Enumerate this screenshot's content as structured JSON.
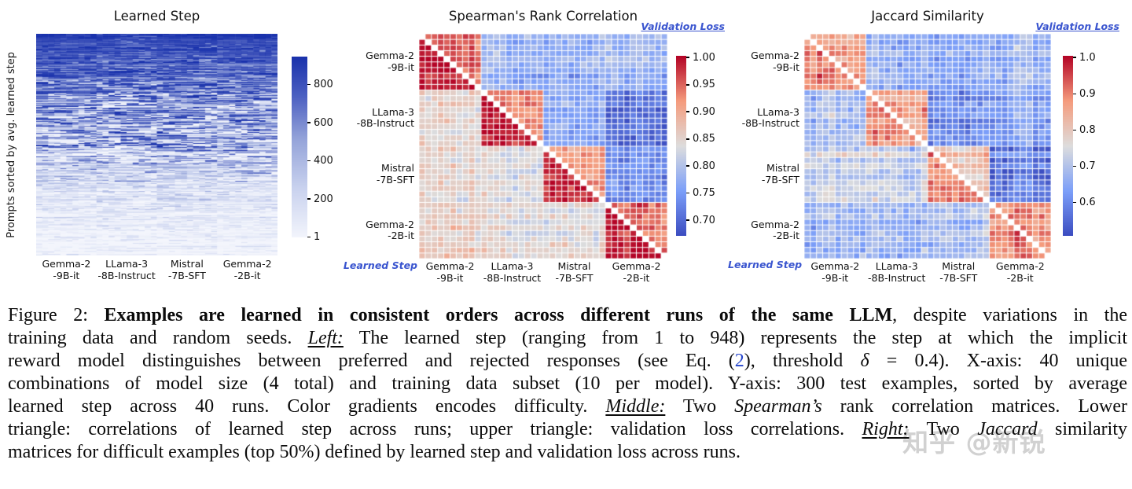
{
  "figure": {
    "panels": [
      {
        "title": "Learned Step",
        "ylabel": "Prompts sorted by avg. learned step",
        "xticklabels": [
          [
            "Gemma-2",
            "-9B-it"
          ],
          [
            "LLama-3",
            "-8B-Instruct"
          ],
          [
            "Mistral",
            "-7B-SFT"
          ],
          [
            "Gemma-2",
            "-2B-it"
          ]
        ],
        "colorbar_ticks": [
          "800",
          "600",
          "400",
          "200",
          "1"
        ]
      },
      {
        "title": "Spearman's Rank Correlation",
        "top_right_label": "Validation Loss",
        "bottom_left_label": "Learned Step",
        "yticklabels": [
          [
            "Gemma-2",
            "-9B-it"
          ],
          [
            "LLama-3",
            "-8B-Instruct"
          ],
          [
            "Mistral",
            "-7B-SFT"
          ],
          [
            "Gemma-2",
            "-2B-it"
          ]
        ],
        "xticklabels": [
          [
            "Gemma-2",
            "-9B-it"
          ],
          [
            "LLama-3",
            "-8B-Instruct"
          ],
          [
            "Mistral",
            "-7B-SFT"
          ],
          [
            "Gemma-2",
            "-2B-it"
          ]
        ],
        "colorbar_ticks": [
          "1.00",
          "0.95",
          "0.90",
          "0.85",
          "0.80",
          "0.75",
          "0.70"
        ]
      },
      {
        "title": "Jaccard Similarity",
        "top_right_label": "Validation Loss",
        "bottom_left_label": "Learned Step",
        "yticklabels": [
          [
            "Gemma-2",
            "-9B-it"
          ],
          [
            "LLama-3",
            "-8B-Instruct"
          ],
          [
            "Mistral",
            "-7B-SFT"
          ],
          [
            "Gemma-2",
            "-2B-it"
          ]
        ],
        "xticklabels": [
          [
            "Gemma-2",
            "-9B-it"
          ],
          [
            "LLama-3",
            "-8B-Instruct"
          ],
          [
            "Mistral",
            "-7B-SFT"
          ],
          [
            "Gemma-2",
            "-2B-it"
          ]
        ],
        "colorbar_ticks": [
          "1.0",
          "0.9",
          "0.8",
          "0.7",
          "0.6"
        ]
      }
    ],
    "accent_blue": "#3a55cf",
    "heatmap_dark_blue": "#1a32ac",
    "coolwarm_red": "#b40426",
    "coolwarm_blue": "#3b4cc0"
  },
  "chart_data": [
    {
      "type": "heatmap",
      "title": "Learned Step",
      "ylabel": "Prompts sorted by avg. learned step",
      "rows": 300,
      "cols": 40,
      "col_groups": [
        "Gemma-2-9B-it",
        "LLama-3-8B-Instruct",
        "Mistral-7B-SFT",
        "Gemma-2-2B-it"
      ],
      "runs_per_model": 10,
      "value_range": [
        1,
        948
      ],
      "row_order": "sorted by average learned step, high (dark blue) at top to low (near white) at bottom",
      "colormap": "white-to-royal-blue",
      "colorbar": {
        "min": 1,
        "max": 948,
        "ticks": [
          800,
          600,
          400,
          200,
          1
        ]
      }
    },
    {
      "type": "heatmap",
      "title": "Spearman's Rank Correlation",
      "matrix_size": 40,
      "group_size": 10,
      "models": [
        "Gemma-2-9B-it",
        "LLama-3-8B-Instruct",
        "Mistral-7B-SFT",
        "Gemma-2-2B-it"
      ],
      "lower_triangle": "learned step correlations across runs",
      "upper_triangle": "validation loss correlations across runs",
      "diagonal": "white",
      "colormap": "coolwarm",
      "colorbar": {
        "min": 0.672,
        "max": 1.004,
        "ticks": [
          1.0,
          0.95,
          0.9,
          0.85,
          0.8,
          0.75,
          0.7
        ]
      },
      "lower_block_means": [
        [
          0.995,
          0,
          0,
          0
        ],
        [
          0.845,
          0.993,
          0,
          0
        ],
        [
          0.845,
          0.84,
          0.988,
          0
        ],
        [
          0.858,
          0.85,
          0.842,
          0.993
        ]
      ],
      "upper_block_means": [
        [
          0.952,
          0.782,
          0.778,
          0.788
        ],
        [
          0,
          0.936,
          0.757,
          0.7
        ],
        [
          0,
          0,
          0.916,
          0.735
        ],
        [
          0,
          0,
          0,
          0.948
        ]
      ],
      "cell_noise": 0.013,
      "stripe_noise": 0.008
    },
    {
      "type": "heatmap",
      "title": "Jaccard Similarity",
      "matrix_size": 40,
      "group_size": 10,
      "models": [
        "Gemma-2-9B-it",
        "LLama-3-8B-Instruct",
        "Mistral-7B-SFT",
        "Gemma-2-2B-it"
      ],
      "lower_triangle": "Jaccard similarity of difficult examples (top 50%) by learned step",
      "upper_triangle": "Jaccard similarity of difficult examples (top 50%) by validation loss",
      "diagonal": "white",
      "colormap": "coolwarm",
      "colorbar": {
        "min": 0.509,
        "max": 1.006,
        "ticks": [
          1.0,
          0.9,
          0.8,
          0.7,
          0.6
        ]
      },
      "lower_block_means": [
        [
          0.895,
          0,
          0,
          0
        ],
        [
          0.685,
          0.895,
          0,
          0
        ],
        [
          0.72,
          0.72,
          0.885,
          0
        ],
        [
          0.675,
          0.675,
          0.685,
          0.9
        ]
      ],
      "upper_block_means": [
        [
          0.875,
          0.66,
          0.64,
          0.66
        ],
        [
          0,
          0.88,
          0.6,
          0.635
        ],
        [
          0,
          0,
          0.8,
          0.565
        ],
        [
          0,
          0,
          0,
          0.89
        ]
      ],
      "cell_noise": 0.022,
      "stripe_noise": 0.013
    }
  ],
  "caption": {
    "lines": [
      [
        {
          "t": "Figure 2: ",
          "s": "p"
        },
        {
          "t": "Examples are learned in consistent orders across different runs of the same LLM",
          "s": "b"
        },
        {
          "t": ", despite variations in the",
          "s": "p"
        }
      ],
      [
        {
          "t": "training data and random seeds. ",
          "s": "p"
        },
        {
          "t": "Left:",
          "s": "iu"
        },
        {
          "t": " The learned step (ranging from 1 to 948) represents the step at which the implicit",
          "s": "p"
        }
      ],
      [
        {
          "t": "reward model distinguishes between preferred and rejected responses (see Eq. (",
          "s": "p"
        },
        {
          "t": "2",
          "s": "l"
        },
        {
          "t": "), threshold ",
          "s": "p"
        },
        {
          "t": "δ",
          "s": "i"
        },
        {
          "t": " = 0.4). X-axis: 40 unique",
          "s": "p"
        }
      ],
      [
        {
          "t": "combinations of model size (4 total) and training data subset (10 per model). Y-axis: 300 test examples, sorted by average",
          "s": "p"
        }
      ],
      [
        {
          "t": "learned step across 40 runs. Color gradients encodes difficulty. ",
          "s": "p"
        },
        {
          "t": "Middle:",
          "s": "iu"
        },
        {
          "t": " Two ",
          "s": "p"
        },
        {
          "t": "Spearman’s",
          "s": "i"
        },
        {
          "t": " rank correlation matrices. Lower",
          "s": "p"
        }
      ],
      [
        {
          "t": "triangle: correlations of learned step across runs; upper triangle: validation loss correlations. ",
          "s": "p"
        },
        {
          "t": "Right:",
          "s": "iu"
        },
        {
          "t": " Two ",
          "s": "p"
        },
        {
          "t": "Jaccard",
          "s": "i"
        },
        {
          "t": " similarity",
          "s": "p"
        }
      ],
      [
        {
          "t": "matrices for difficult examples (top 50%) defined by learned step and validation loss across runs.",
          "s": "p"
        }
      ]
    ]
  },
  "watermark": {
    "text": "知乎 @新锐"
  }
}
